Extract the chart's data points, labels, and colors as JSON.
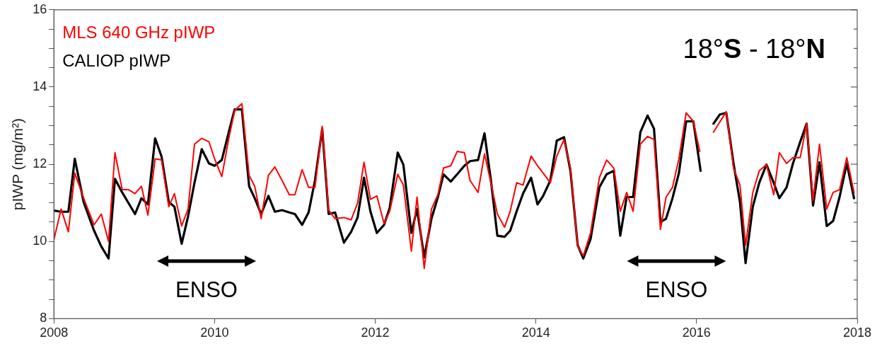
{
  "chart_data": {
    "type": "line",
    "title": "18°S - 18°N",
    "ylabel": "pIWP (mg/m²)",
    "legend": "top left",
    "grid": false,
    "xlim": [
      2008,
      2018
    ],
    "xticks": [
      2008,
      2010,
      2012,
      2014,
      2016,
      2018
    ],
    "ylim": [
      8,
      16
    ],
    "yticks": [
      8,
      {
        "value": 8.5,
        "label": null
      },
      {
        "value": 9,
        "label": null
      },
      {
        "value": 9.5,
        "label": null
      },
      10,
      {
        "value": 10.5,
        "label": null
      },
      {
        "value": 11,
        "label": null
      },
      {
        "value": 11.5,
        "label": null
      },
      12,
      {
        "value": 12.5,
        "label": null
      },
      {
        "value": 13,
        "label": null
      },
      {
        "value": 13.5,
        "label": null
      },
      14,
      {
        "value": 14.5,
        "label": null
      },
      {
        "value": 15,
        "label": null
      },
      {
        "value": 15.5,
        "label": null
      },
      16
    ],
    "annotations": [
      "ENSO",
      "ENSO"
    ],
    "series": [
      {
        "name": "MLS 640 GHz pIWP",
        "color": "#ff0000",
        "x": [
          2008.0,
          2008.09,
          2008.18,
          2008.26,
          2008.37,
          2008.5,
          2008.59,
          2008.68,
          2008.76,
          2008.85,
          2008.93,
          2009.01,
          2009.09,
          2009.17,
          2009.26,
          2009.34,
          2009.43,
          2009.5,
          2009.59,
          2009.67,
          2009.75,
          2009.84,
          2009.93,
          2010.0,
          2010.09,
          2010.18,
          2010.25,
          2010.34,
          2010.43,
          2010.5,
          2010.58,
          2010.67,
          2010.75,
          2010.84,
          2010.93,
          2011.0,
          2011.09,
          2011.17,
          2011.25,
          2011.34,
          2011.42,
          2011.5,
          2011.61,
          2011.7,
          2011.78,
          2011.86,
          2011.94,
          2012.02,
          2012.11,
          2012.18,
          2012.28,
          2012.35,
          2012.45,
          2012.52,
          2012.61,
          2012.7,
          2012.78,
          2012.85,
          2012.94,
          2013.02,
          2013.11,
          2013.18,
          2013.28,
          2013.36,
          2013.44,
          2013.52,
          2013.61,
          2013.68,
          2013.76,
          2013.84,
          2013.94,
          2014.02,
          2014.09,
          2014.18,
          2014.26,
          2014.35,
          2014.43,
          2014.52,
          2014.59,
          2014.68,
          2014.79,
          2014.88,
          2014.97,
          2015.05,
          2015.13,
          2015.21,
          2015.3,
          2015.39,
          2015.47,
          2015.55,
          2015.62,
          2015.7,
          2015.78,
          2015.87,
          2015.96,
          2016.04,
          2016.12,
          2016.21,
          2016.37,
          2016.46,
          2016.54,
          2016.61,
          2016.7,
          2016.78,
          2016.87,
          2016.96,
          2017.03,
          2017.12,
          2017.2,
          2017.29,
          2017.37,
          2017.45,
          2017.53,
          2017.62,
          2017.7,
          2017.78,
          2017.87,
          2017.96
        ],
        "values": [
          10.05,
          10.84,
          10.25,
          11.77,
          11.12,
          10.43,
          10.71,
          10.0,
          12.3,
          11.34,
          11.34,
          11.24,
          11.43,
          10.68,
          12.14,
          12.11,
          10.9,
          11.24,
          10.4,
          10.84,
          12.52,
          12.67,
          12.58,
          12.14,
          11.68,
          12.7,
          13.39,
          13.57,
          11.71,
          11.43,
          10.59,
          11.71,
          11.93,
          11.58,
          11.21,
          11.21,
          11.86,
          11.4,
          11.4,
          12.98,
          10.81,
          10.59,
          10.62,
          10.56,
          10.99,
          12.05,
          11.09,
          11.18,
          10.46,
          10.78,
          11.74,
          11.46,
          9.75,
          11.15,
          9.3,
          10.84,
          11.21,
          11.9,
          11.96,
          12.33,
          12.3,
          11.58,
          11.27,
          12.27,
          11.52,
          10.71,
          10.37,
          10.78,
          11.52,
          11.46,
          12.21,
          11.96,
          11.77,
          11.52,
          12.21,
          12.64,
          11.9,
          9.87,
          9.63,
          10.22,
          11.65,
          12.11,
          11.9,
          10.78,
          11.27,
          10.78,
          12.52,
          12.72,
          12.64,
          10.31,
          11.15,
          11.4,
          12.14,
          13.33,
          13.11,
          12.33,
          null,
          12.83,
          13.36,
          11.9,
          11.46,
          9.9,
          11.27,
          11.83,
          11.99,
          11.21,
          12.3,
          12.02,
          12.17,
          12.17,
          13.05,
          11.06,
          12.52,
          10.84,
          11.27,
          11.34,
          12.17,
          11.27
        ]
      },
      {
        "name": "CALIOP pIWP",
        "color": "#000000",
        "x": [
          2008.0,
          2008.09,
          2008.18,
          2008.26,
          2008.37,
          2008.5,
          2008.59,
          2008.68,
          2008.76,
          2008.85,
          2008.93,
          2009.01,
          2009.09,
          2009.17,
          2009.26,
          2009.34,
          2009.43,
          2009.5,
          2009.59,
          2009.67,
          2009.75,
          2009.84,
          2009.93,
          2010.0,
          2010.09,
          2010.18,
          2010.25,
          2010.34,
          2010.43,
          2010.5,
          2010.58,
          2010.67,
          2010.75,
          2010.84,
          2010.93,
          2011.0,
          2011.09,
          2011.17,
          2011.25,
          2011.34,
          2011.42,
          2011.5,
          2011.61,
          2011.7,
          2011.78,
          2011.86,
          2011.94,
          2012.02,
          2012.11,
          2012.18,
          2012.28,
          2012.35,
          2012.45,
          2012.52,
          2012.61,
          2012.7,
          2012.78,
          2012.85,
          2012.94,
          2013.02,
          2013.11,
          2013.18,
          2013.28,
          2013.36,
          2013.44,
          2013.52,
          2013.61,
          2013.68,
          2013.76,
          2013.84,
          2013.94,
          2014.02,
          2014.09,
          2014.18,
          2014.26,
          2014.35,
          2014.43,
          2014.52,
          2014.59,
          2014.68,
          2014.79,
          2014.88,
          2014.97,
          2015.05,
          2015.13,
          2015.21,
          2015.3,
          2015.39,
          2015.47,
          2015.55,
          2015.62,
          2015.7,
          2015.78,
          2015.87,
          2015.96,
          2016.05,
          2016.12,
          2016.21,
          2016.29,
          2016.37,
          2016.46,
          2016.54,
          2016.61,
          2016.7,
          2016.78,
          2016.87,
          2016.96,
          2017.03,
          2017.12,
          2017.2,
          2017.29,
          2017.37,
          2017.45,
          2017.53,
          2017.62,
          2017.7,
          2017.78,
          2017.87,
          2017.96
        ],
        "values": [
          10.8,
          10.77,
          10.77,
          12.14,
          11.02,
          10.28,
          9.87,
          9.56,
          11.62,
          11.27,
          10.99,
          10.71,
          11.12,
          10.96,
          12.67,
          12.2,
          11.02,
          10.9,
          9.94,
          10.65,
          11.52,
          12.39,
          12.02,
          11.96,
          12.11,
          12.86,
          13.42,
          13.42,
          11.43,
          11.12,
          10.71,
          11.18,
          10.77,
          10.81,
          10.75,
          10.71,
          10.43,
          10.75,
          11.58,
          12.92,
          10.71,
          10.75,
          9.97,
          10.25,
          10.62,
          11.65,
          10.78,
          10.22,
          10.43,
          10.87,
          12.3,
          11.99,
          10.22,
          10.84,
          9.59,
          10.59,
          11.15,
          11.74,
          11.55,
          11.74,
          11.96,
          12.08,
          12.11,
          12.8,
          11.58,
          10.15,
          10.12,
          10.28,
          10.78,
          11.24,
          11.65,
          10.96,
          11.18,
          11.58,
          12.61,
          12.7,
          11.83,
          9.9,
          9.56,
          10.06,
          11.4,
          11.74,
          11.83,
          10.15,
          11.15,
          11.15,
          12.83,
          13.26,
          12.92,
          10.5,
          10.59,
          11.12,
          11.77,
          13.11,
          13.11,
          11.83,
          null,
          13.05,
          13.29,
          13.33,
          12.02,
          11.02,
          9.44,
          10.9,
          11.52,
          11.99,
          11.52,
          11.12,
          11.4,
          12.02,
          12.58,
          13.05,
          10.93,
          12.05,
          10.4,
          10.53,
          11.15,
          12.02,
          11.12
        ]
      }
    ]
  }
}
